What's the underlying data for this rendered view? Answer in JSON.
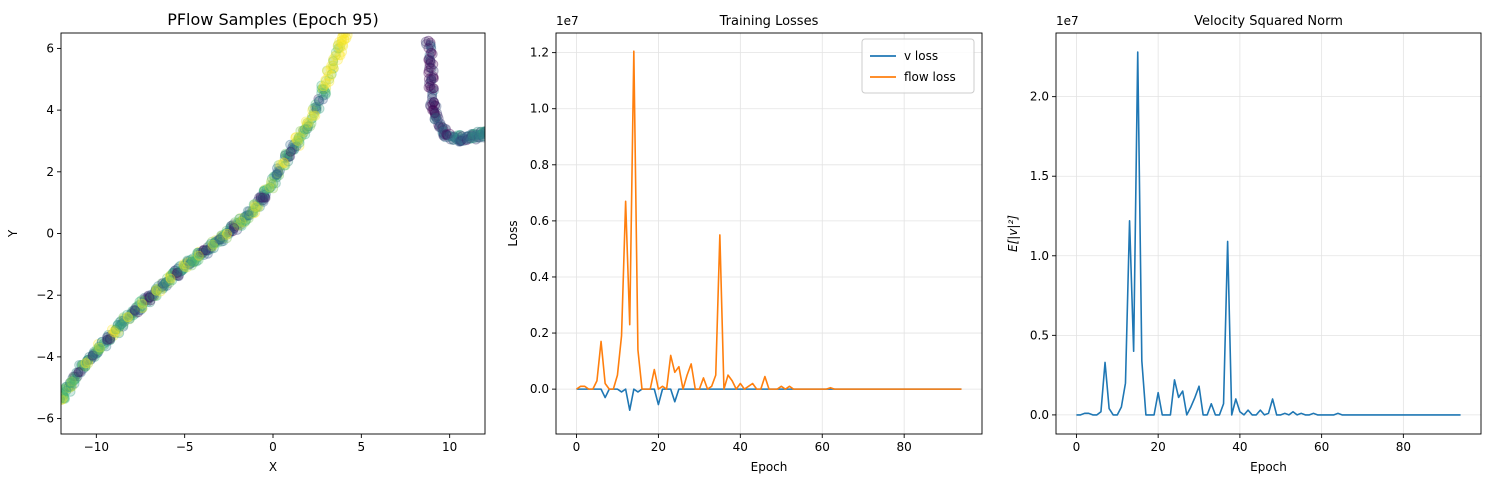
{
  "chart_data": [
    {
      "type": "scatter",
      "title": "PFlow Samples (Epoch 95)",
      "xlabel": "X",
      "ylabel": "Y",
      "xlim": [
        -12,
        12
      ],
      "ylim": [
        -6.5,
        6.5
      ],
      "xticks": [
        -10,
        -5,
        0,
        5,
        10
      ],
      "xtick_labels": [
        "−10",
        "−5",
        "0",
        "5",
        "10"
      ],
      "yticks": [
        -6,
        -4,
        -2,
        0,
        2,
        4,
        6
      ],
      "ytick_labels": [
        "−6",
        "−4",
        "−2",
        "0",
        "2",
        "4",
        "6"
      ],
      "grid": false,
      "colormap": [
        "#440154",
        "#31688e",
        "#35b779",
        "#fde725"
      ],
      "series": [
        {
          "points": [
            {
              "x": -12.0,
              "y": -5.4,
              "c": 0.9
            },
            {
              "x": -11.7,
              "y": -5.1,
              "c": 0.6
            },
            {
              "x": -11.4,
              "y": -4.8,
              "c": 0.8
            },
            {
              "x": -11.0,
              "y": -4.5,
              "c": 0.1
            },
            {
              "x": -10.6,
              "y": -4.2,
              "c": 0.95
            },
            {
              "x": -10.2,
              "y": -3.95,
              "c": 0.3
            },
            {
              "x": -9.8,
              "y": -3.7,
              "c": 0.9
            },
            {
              "x": -9.4,
              "y": -3.45,
              "c": 0.15
            },
            {
              "x": -9.0,
              "y": -3.2,
              "c": 1.0
            },
            {
              "x": -8.6,
              "y": -2.95,
              "c": 0.5
            },
            {
              "x": -8.2,
              "y": -2.72,
              "c": 0.9
            },
            {
              "x": -7.8,
              "y": -2.5,
              "c": 0.2
            },
            {
              "x": -7.4,
              "y": -2.28,
              "c": 0.95
            },
            {
              "x": -7.0,
              "y": -2.07,
              "c": 0.1
            },
            {
              "x": -6.6,
              "y": -1.86,
              "c": 0.85
            },
            {
              "x": -6.2,
              "y": -1.66,
              "c": 0.4
            },
            {
              "x": -5.8,
              "y": -1.46,
              "c": 1.0
            },
            {
              "x": -5.4,
              "y": -1.27,
              "c": 0.15
            },
            {
              "x": -5.0,
              "y": -1.08,
              "c": 0.9
            },
            {
              "x": -4.6,
              "y": -0.9,
              "c": 0.6
            },
            {
              "x": -4.2,
              "y": -0.72,
              "c": 0.95
            },
            {
              "x": -3.8,
              "y": -0.54,
              "c": 0.05
            },
            {
              "x": -3.4,
              "y": -0.36,
              "c": 0.9
            },
            {
              "x": -3.0,
              "y": -0.19,
              "c": 0.3
            },
            {
              "x": -2.6,
              "y": -0.01,
              "c": 1.0
            },
            {
              "x": -2.2,
              "y": 0.18,
              "c": 0.1
            },
            {
              "x": -1.8,
              "y": 0.38,
              "c": 0.9
            },
            {
              "x": -1.4,
              "y": 0.6,
              "c": 0.5
            },
            {
              "x": -1.0,
              "y": 0.86,
              "c": 0.95
            },
            {
              "x": -0.6,
              "y": 1.16,
              "c": 0.2
            },
            {
              "x": -0.2,
              "y": 1.5,
              "c": 0.9
            },
            {
              "x": 0.2,
              "y": 1.9,
              "c": 0.4
            },
            {
              "x": 0.6,
              "y": 2.3,
              "c": 1.0
            },
            {
              "x": 1.0,
              "y": 2.65,
              "c": 0.1
            },
            {
              "x": 1.4,
              "y": 3.0,
              "c": 0.9
            },
            {
              "x": 1.8,
              "y": 3.38,
              "c": 0.7
            },
            {
              "x": 2.2,
              "y": 3.8,
              "c": 0.95
            },
            {
              "x": 2.6,
              "y": 4.3,
              "c": 0.3
            },
            {
              "x": 3.0,
              "y": 4.85,
              "c": 1.0
            },
            {
              "x": 3.4,
              "y": 5.45,
              "c": 0.9
            },
            {
              "x": 3.8,
              "y": 6.05,
              "c": 0.95
            },
            {
              "x": 4.1,
              "y": 6.5,
              "c": 1.0
            },
            {
              "x": 8.8,
              "y": 6.25,
              "c": 0.05
            },
            {
              "x": 8.9,
              "y": 5.6,
              "c": 0.1
            },
            {
              "x": 8.95,
              "y": 5.0,
              "c": 0.05
            },
            {
              "x": 9.0,
              "y": 4.4,
              "c": 0.15
            },
            {
              "x": 9.15,
              "y": 3.9,
              "c": 0.1
            },
            {
              "x": 9.4,
              "y": 3.45,
              "c": 0.2
            },
            {
              "x": 9.8,
              "y": 3.2,
              "c": 0.15
            },
            {
              "x": 10.3,
              "y": 3.1,
              "c": 0.35
            },
            {
              "x": 10.8,
              "y": 3.08,
              "c": 0.3
            },
            {
              "x": 11.3,
              "y": 3.15,
              "c": 0.4
            },
            {
              "x": 11.7,
              "y": 3.2,
              "c": 0.45
            },
            {
              "x": 12.0,
              "y": 3.22,
              "c": 0.4
            }
          ]
        }
      ]
    },
    {
      "type": "line",
      "title": "Training Losses",
      "xlabel": "Epoch",
      "ylabel": "Loss",
      "scale_label": "1e7",
      "xlim": [
        -5,
        99
      ],
      "ylim": [
        -0.16,
        1.27
      ],
      "xticks": [
        0,
        20,
        40,
        60,
        80
      ],
      "xtick_labels": [
        "0",
        "20",
        "40",
        "60",
        "80"
      ],
      "yticks": [
        0,
        0.2,
        0.4,
        0.6,
        0.8,
        1.0,
        1.2
      ],
      "ytick_labels": [
        "0.0",
        "0.2",
        "0.4",
        "0.6",
        "0.8",
        "1.0",
        "1.2"
      ],
      "grid": true,
      "legend": "top-right",
      "series": [
        {
          "name": "v loss",
          "color": "#1f77b4",
          "values": [
            0,
            0,
            0,
            0,
            0,
            0,
            0,
            -0.03,
            0,
            0,
            0,
            -0.01,
            0,
            -0.075,
            0,
            -0.01,
            0,
            0,
            0,
            0,
            -0.055,
            0,
            0,
            0,
            -0.045,
            0,
            0,
            0,
            0,
            0,
            0,
            0,
            0,
            0,
            0,
            0,
            0,
            0,
            0,
            0,
            0,
            0,
            0,
            0,
            0,
            0,
            0,
            0,
            0,
            0,
            0,
            0,
            0,
            0,
            0,
            0,
            0,
            0,
            0,
            0,
            0,
            0,
            0,
            0,
            0,
            0,
            0,
            0,
            0,
            0,
            0,
            0,
            0,
            0,
            0,
            0,
            0,
            0,
            0,
            0,
            0,
            0,
            0,
            0,
            0,
            0,
            0,
            0,
            0,
            0,
            0,
            0,
            0,
            0,
            0
          ]
        },
        {
          "name": "flow loss",
          "color": "#ff7f0e",
          "values": [
            0,
            0.01,
            0.01,
            0,
            0,
            0.03,
            0.17,
            0.02,
            0,
            0,
            0.05,
            0.19,
            0.67,
            0.23,
            1.205,
            0.14,
            0,
            0,
            0,
            0.07,
            0,
            0.01,
            0,
            0.12,
            0.06,
            0.08,
            0,
            0.05,
            0.09,
            0,
            0,
            0.04,
            0,
            0.01,
            0.05,
            0.55,
            0,
            0.05,
            0.03,
            0,
            0.02,
            0,
            0.01,
            0.02,
            0,
            0,
            0.045,
            0,
            0,
            0,
            0.01,
            0,
            0.01,
            0,
            0,
            0,
            0,
            0,
            0,
            0,
            0,
            0,
            0.005,
            0,
            0,
            0,
            0,
            0,
            0,
            0,
            0,
            0,
            0,
            0,
            0,
            0,
            0,
            0,
            0,
            0,
            0,
            0,
            0,
            0,
            0,
            0,
            0,
            0,
            0,
            0,
            0,
            0,
            0,
            0,
            0
          ]
        }
      ]
    },
    {
      "type": "line",
      "title": "Velocity Squared Norm",
      "xlabel": "Epoch",
      "ylabel": "E[|v|²]",
      "scale_label": "1e7",
      "xlim": [
        -5,
        99
      ],
      "ylim": [
        -0.12,
        2.4
      ],
      "xticks": [
        0,
        20,
        40,
        60,
        80
      ],
      "xtick_labels": [
        "0",
        "20",
        "40",
        "60",
        "80"
      ],
      "yticks": [
        0,
        0.5,
        1.0,
        1.5,
        2.0
      ],
      "ytick_labels": [
        "0.0",
        "0.5",
        "1.0",
        "1.5",
        "2.0"
      ],
      "grid": true,
      "series": [
        {
          "color": "#1f77b4",
          "values": [
            0,
            0,
            0.01,
            0.01,
            0,
            0,
            0.02,
            0.33,
            0.04,
            0,
            0,
            0.05,
            0.2,
            1.22,
            0.4,
            2.28,
            0.34,
            0,
            0,
            0,
            0.14,
            0,
            0,
            0,
            0.22,
            0.11,
            0.15,
            0,
            0.05,
            0.11,
            0.18,
            0,
            0,
            0.07,
            0,
            0,
            0.07,
            1.09,
            0,
            0.1,
            0.02,
            0,
            0.03,
            0,
            0,
            0.03,
            0,
            0.01,
            0.1,
            0,
            0,
            0.01,
            0,
            0.02,
            0,
            0.01,
            0,
            0,
            0.01,
            0,
            0,
            0,
            0,
            0,
            0.01,
            0,
            0,
            0,
            0,
            0,
            0,
            0,
            0,
            0,
            0,
            0,
            0,
            0,
            0,
            0,
            0,
            0,
            0,
            0,
            0,
            0,
            0,
            0,
            0,
            0,
            0,
            0,
            0,
            0,
            0
          ]
        }
      ]
    }
  ]
}
